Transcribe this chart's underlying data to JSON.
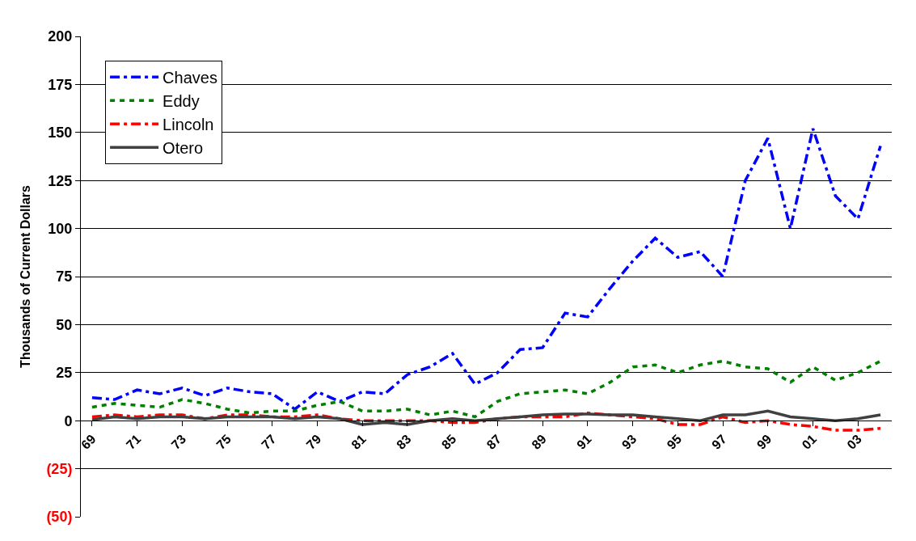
{
  "chart_data": {
    "type": "line",
    "ylabel": "Thousands of Current Dollars",
    "categories": [
      "69",
      null,
      "71",
      null,
      "73",
      null,
      "75",
      null,
      "77",
      null,
      "79",
      null,
      "81",
      null,
      "83",
      null,
      "85",
      null,
      "87",
      null,
      "89",
      null,
      "91",
      null,
      "93",
      null,
      "95",
      null,
      "97",
      null,
      "99",
      null,
      "01",
      null,
      "03",
      null
    ],
    "series": [
      {
        "name": "Chaves",
        "color": "#0000ff",
        "line_style": "dashed",
        "values": [
          12,
          11,
          16,
          14,
          17,
          13,
          17,
          15,
          14,
          6,
          15,
          10,
          15,
          14,
          24,
          28,
          35,
          19,
          25,
          37,
          38,
          56,
          54,
          69,
          83,
          95,
          85,
          88,
          75,
          125,
          147,
          100,
          152,
          117,
          105,
          143
        ]
      },
      {
        "name": "Eddy",
        "color": "#008000",
        "line_style": "dotted",
        "values": [
          7,
          9,
          8,
          7,
          11,
          9,
          6,
          4,
          5,
          5,
          8,
          10,
          5,
          5,
          6,
          3,
          5,
          2,
          10,
          14,
          15,
          16,
          14,
          20,
          28,
          29,
          25,
          29,
          31,
          28,
          27,
          20,
          28,
          21,
          25,
          31
        ]
      },
      {
        "name": "Lincoln",
        "color": "#ff0000",
        "line_style": "dashed",
        "values": [
          2,
          3,
          2,
          3,
          3,
          1,
          3,
          3,
          2,
          2,
          3,
          1,
          0,
          0,
          0,
          0,
          -1,
          -1,
          1,
          2,
          2,
          2,
          4,
          3,
          2,
          1,
          -2,
          -2,
          2,
          -1,
          0,
          -2,
          -3,
          -5,
          -5,
          -4
        ]
      },
      {
        "name": "Otero",
        "color": "#404040",
        "line_style": "solid",
        "values": [
          0.5,
          2,
          1,
          2,
          2,
          1,
          2,
          2,
          2,
          1,
          2,
          1,
          -2,
          -1,
          -2,
          0,
          1,
          0,
          1,
          2,
          3,
          3.5,
          3.5,
          3,
          3,
          2,
          1,
          0,
          3,
          3,
          5,
          2,
          1,
          0,
          1,
          3
        ]
      }
    ],
    "ylim": [
      -50,
      200
    ],
    "yticks": [
      {
        "value": -50,
        "label": "(50)"
      },
      {
        "value": -25,
        "label": "(25)"
      },
      0,
      25,
      50,
      75,
      100,
      125,
      150,
      175,
      200
    ],
    "grid": "y",
    "legend": "top left",
    "marker": "none"
  }
}
